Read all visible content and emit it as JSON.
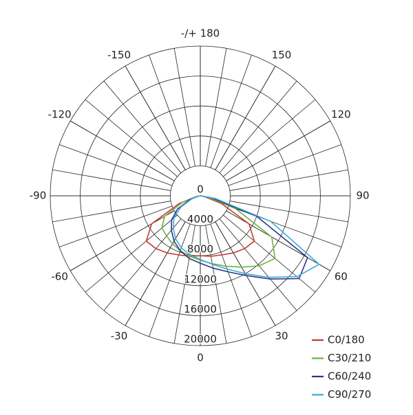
{
  "chart_data": {
    "type": "polar",
    "x": [
      -90,
      -80,
      -70,
      -60,
      -50,
      -40,
      -30,
      -20,
      -10,
      0,
      10,
      20,
      30,
      40,
      50,
      60,
      70,
      80,
      90
    ],
    "series": [
      {
        "name": "C0/180",
        "color": "#c8392e",
        "values": [
          0,
          500,
          3000,
          7500,
          9400,
          9200,
          8800,
          8400,
          8200,
          8000,
          8200,
          8400,
          8800,
          9200,
          9400,
          7500,
          3000,
          500,
          0
        ]
      },
      {
        "name": "C30/210",
        "color": "#6cb33f",
        "values": [
          0,
          500,
          2500,
          5500,
          6700,
          7000,
          7400,
          7800,
          8200,
          8600,
          9200,
          10000,
          11000,
          12200,
          13000,
          11000,
          5000,
          1000,
          0
        ]
      },
      {
        "name": "C60/240",
        "color": "#2b3585",
        "values": [
          0,
          300,
          1500,
          3500,
          5000,
          6000,
          7000,
          7800,
          8500,
          9000,
          9800,
          10800,
          12300,
          14500,
          17200,
          16500,
          8000,
          1500,
          0
        ]
      },
      {
        "name": "C90/270",
        "color": "#3fa9d9",
        "values": [
          0,
          300,
          1200,
          3000,
          4600,
          5600,
          6600,
          7400,
          8000,
          8500,
          9300,
          10400,
          12000,
          14200,
          16800,
          18300,
          10000,
          2000,
          0
        ]
      }
    ],
    "xticks": [
      0,
      30,
      60,
      90,
      120,
      150,
      {
        "value": 180,
        "label": "-/+ 180"
      },
      -150,
      -120,
      -90,
      -60,
      -30
    ],
    "ylim": [
      0,
      20000
    ],
    "yticks": [
      0,
      4000,
      8000,
      12000,
      16000,
      20000
    ],
    "legend": "bottom-right"
  }
}
